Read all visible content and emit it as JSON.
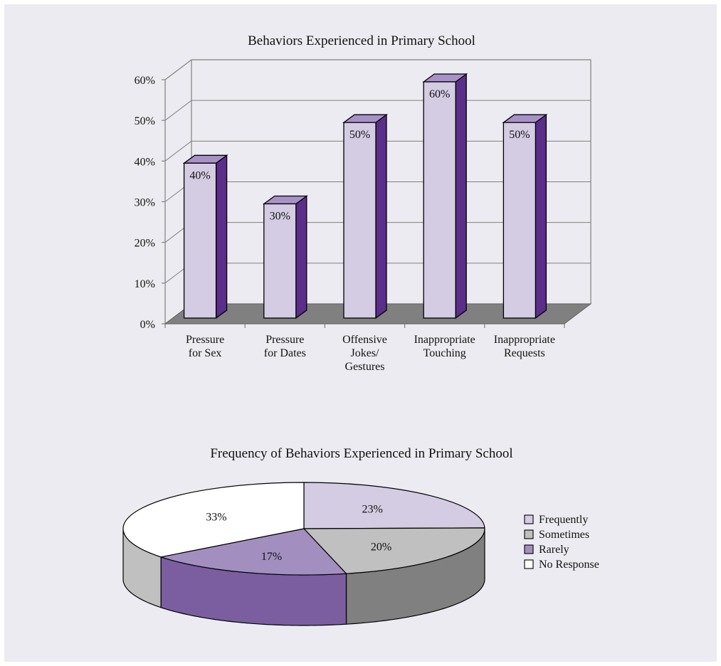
{
  "colors": {
    "panel_bg": "#ecebf1",
    "bar_front": "#d4cce3",
    "bar_side": "#5b2e8a",
    "bar_top": "#a891c8",
    "floor": "#808080",
    "slice_frequently": "#d4cce3",
    "slice_sometimes": "#c0c0c0",
    "slice_rarely": "#a28fc0",
    "slice_rarely_side": "#7b5ea0",
    "slice_sometimes_side": "#808080",
    "slice_noresponse": "#ffffff",
    "slice_noresponse_side": "#c0c0c0"
  },
  "chart_data": [
    {
      "type": "bar",
      "title": "Behaviors Experienced in Primary School",
      "categories": [
        [
          "Pressure",
          "for Sex"
        ],
        [
          "Pressure",
          "for Dates"
        ],
        [
          "Offensive",
          "Jokes/",
          "Gestures"
        ],
        [
          "Inappropriate",
          "Touching"
        ],
        [
          "Inappropriate",
          "Requests"
        ]
      ],
      "values": [
        40,
        30,
        50,
        60,
        50
      ],
      "data_labels": [
        "40%",
        "30%",
        "50%",
        "60%",
        "50%"
      ],
      "ylim": [
        0,
        60
      ],
      "yticks": [
        "0%",
        "10%",
        "20%",
        "30%",
        "40%",
        "50%",
        "60%"
      ],
      "grid": true
    },
    {
      "type": "pie",
      "title": "Frequency of Behaviors Experienced in Primary School",
      "labels": [
        "Frequently",
        "Sometimes",
        "Rarely",
        "No Response"
      ],
      "values": [
        23,
        20,
        17,
        33
      ],
      "data_labels": [
        "23%",
        "20%",
        "17%",
        "33%"
      ],
      "legend": "right"
    }
  ]
}
